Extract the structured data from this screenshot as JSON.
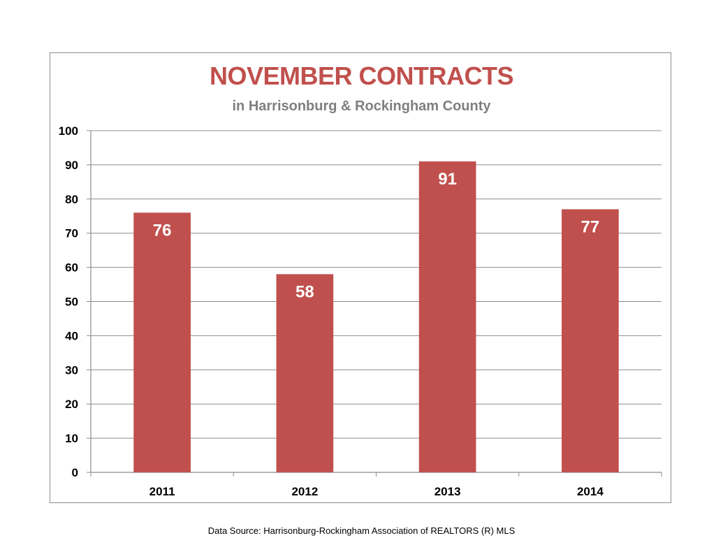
{
  "chart_data": {
    "type": "bar",
    "title": "NOVEMBER CONTRACTS",
    "subtitle": "in Harrisonburg & Rockingham County",
    "categories": [
      "2011",
      "2012",
      "2013",
      "2014"
    ],
    "values": [
      76,
      58,
      91,
      77
    ],
    "data_labels": [
      "76",
      "58",
      "91",
      "77"
    ],
    "ylim": [
      0,
      100
    ],
    "yticks": [
      "0",
      "10",
      "20",
      "30",
      "40",
      "50",
      "60",
      "70",
      "80",
      "90",
      "100"
    ],
    "grid": true,
    "legend": "none",
    "bar_color": "#c0504d"
  },
  "footer": {
    "source": "Data Source: Harrisonburg-Rockingham Association of REALTORS (R) MLS"
  }
}
